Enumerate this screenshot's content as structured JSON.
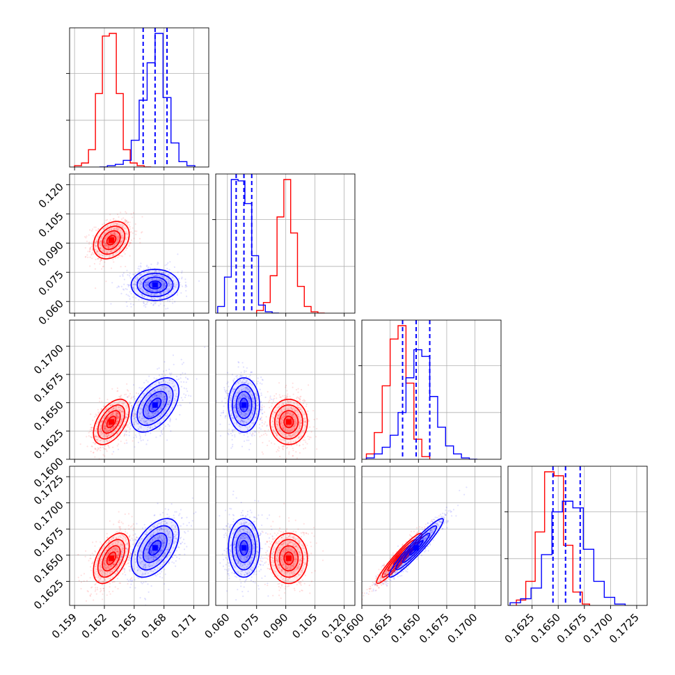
{
  "chart_data": {
    "type": "corner",
    "parameters": 4,
    "grid": true,
    "colors": {
      "series_a": "#ff0000",
      "series_b": "#0000ff"
    },
    "series": [
      {
        "color": "#ff0000",
        "means": [
          0.1627,
          0.0915,
          0.1633,
          0.1647
        ],
        "sds": [
          0.0009,
          0.0048,
          0.001,
          0.0012
        ],
        "correlations": {
          "0_1": 0.3,
          "0_2": 0.5,
          "0_3": 0.5,
          "1_2": 0.0,
          "1_3": 0.0,
          "2_3": 0.95
        },
        "histograms": [
          {
            "edges": [
              0.159,
              0.1597,
              0.1604,
              0.1611,
              0.1618,
              0.1625,
              0.1632,
              0.1639,
              0.1646,
              0.1653,
              0.166,
              0.1667
            ],
            "heights": [
              0.01,
              0.03,
              0.13,
              0.55,
              0.98,
              1.0,
              0.55,
              0.13,
              0.03,
              0.01,
              0.0
            ]
          },
          {
            "edges": [
              0.075,
              0.0785,
              0.082,
              0.0855,
              0.089,
              0.0925,
              0.096,
              0.0995,
              0.103,
              0.1065,
              0.11
            ],
            "heights": [
              0.02,
              0.08,
              0.28,
              0.72,
              1.0,
              0.6,
              0.2,
              0.05,
              0.01,
              0.0
            ]
          },
          {
            "edges": [
              0.1604,
              0.1611,
              0.1618,
              0.1625,
              0.1632,
              0.1639,
              0.1646,
              0.1653,
              0.166
            ],
            "heights": [
              0.04,
              0.2,
              0.55,
              0.9,
              1.0,
              0.57,
              0.15,
              0.02
            ]
          },
          {
            "edges": [
              0.161,
              0.1619,
              0.1628,
              0.1637,
              0.1646,
              0.1655,
              0.1664,
              0.1673,
              0.168
            ],
            "heights": [
              0.04,
              0.18,
              0.55,
              1.0,
              0.97,
              0.45,
              0.1,
              0.01
            ]
          }
        ]
      },
      {
        "color": "#0000ff",
        "means": [
          0.1671,
          0.0685,
          0.1648,
          0.1657
        ],
        "sds": [
          0.0012,
          0.004,
          0.0012,
          0.0014
        ],
        "correlations": {
          "0_1": 0.0,
          "0_2": 0.5,
          "0_3": 0.5,
          "1_2": 0.0,
          "1_3": 0.0,
          "2_3": 0.95
        },
        "quantiles": [
          [
            0.1659,
            0.1671,
            0.1683
          ],
          [
            0.0645,
            0.0685,
            0.0725
          ],
          [
            0.1636,
            0.1648,
            0.166
          ],
          [
            0.1645,
            0.1657,
            0.1671
          ]
        ],
        "histograms": [
          {
            "edges": [
              0.1615,
              0.1623,
              0.1631,
              0.1639,
              0.1647,
              0.1655,
              0.1663,
              0.1671,
              0.1679,
              0.1687,
              0.1695,
              0.1703,
              0.1711
            ],
            "heights": [
              0.0,
              0.01,
              0.02,
              0.05,
              0.2,
              0.5,
              0.78,
              1.0,
              0.52,
              0.18,
              0.04,
              0.01
            ]
          },
          {
            "edges": [
              0.055,
              0.0585,
              0.062,
              0.0655,
              0.069,
              0.0725,
              0.076,
              0.0795,
              0.083,
              0.0865
            ],
            "heights": [
              0.05,
              0.27,
              1.0,
              0.99,
              0.82,
              0.43,
              0.06,
              0.01,
              0.0
            ]
          },
          {
            "edges": [
              0.1604,
              0.1611,
              0.1618,
              0.1625,
              0.1632,
              0.1639,
              0.1646,
              0.1653,
              0.166,
              0.1667,
              0.1674,
              0.1681,
              0.1688,
              0.1695,
              0.1702
            ],
            "heights": [
              0.01,
              0.04,
              0.09,
              0.18,
              0.35,
              0.61,
              0.82,
              0.77,
              0.47,
              0.24,
              0.1,
              0.04,
              0.01,
              0.0
            ]
          },
          {
            "edges": [
              0.1604,
              0.1614,
              0.1624,
              0.1634,
              0.1644,
              0.1654,
              0.1664,
              0.1674,
              0.1684,
              0.1694,
              0.1704,
              0.1714
            ],
            "heights": [
              0.02,
              0.05,
              0.13,
              0.38,
              0.7,
              0.78,
              0.73,
              0.42,
              0.18,
              0.06,
              0.01
            ]
          }
        ]
      }
    ],
    "axes": [
      {
        "range": [
          0.1585,
          0.1725
        ],
        "ticks": [
          0.159,
          0.162,
          0.165,
          0.168,
          0.171
        ],
        "tick_labels": [
          "0.159",
          "0.162",
          "0.165",
          "0.168",
          "0.171"
        ]
      },
      {
        "range": [
          0.054,
          0.1255
        ],
        "ticks": [
          0.06,
          0.075,
          0.09,
          0.105,
          0.12
        ],
        "tick_labels": [
          "0.060",
          "0.075",
          "0.090",
          "0.105",
          "0.120"
        ]
      },
      {
        "range": [
          0.16,
          0.1723
        ],
        "ticks": [
          0.16,
          0.1625,
          0.165,
          0.1675,
          0.17
        ],
        "tick_labels": [
          "0.1600",
          "0.1625",
          "0.1650",
          "0.1675",
          "0.1700"
        ]
      },
      {
        "range": [
          0.1602,
          0.1735
        ],
        "ticks": [
          0.1625,
          0.165,
          0.1675,
          0.17,
          0.1725
        ],
        "tick_labels": [
          "0.1625",
          "0.1650",
          "0.1675",
          "0.1700",
          "0.1725"
        ]
      }
    ]
  }
}
